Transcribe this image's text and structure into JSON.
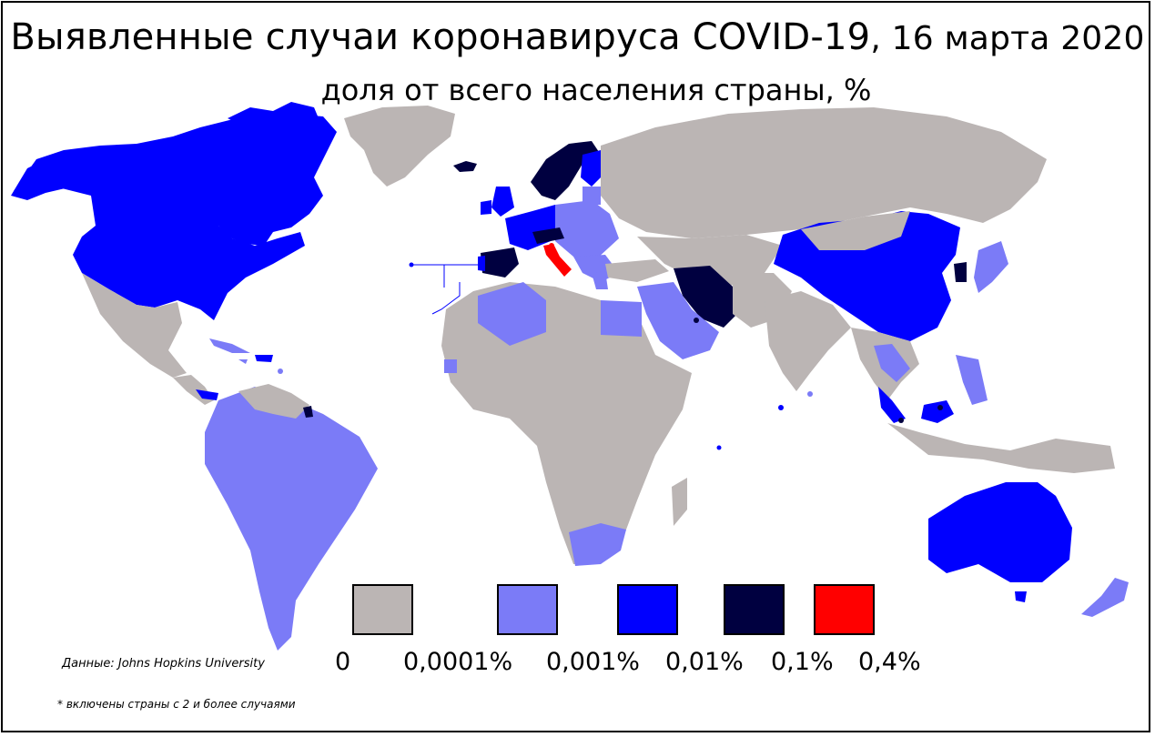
{
  "title": "Выявленные случаи коронавируса COVID-19",
  "title_date": ", 16 марта 2020",
  "subtitle": "доля от всего населения страны, %",
  "source": "Данные:  Johns Hopkins University",
  "footnote": "* включены страны с 2 и более случаями",
  "legend": {
    "colors": [
      "#bbb5b4",
      "#7b7bf7",
      "#0000ff",
      "#000040",
      "#ff0000"
    ],
    "labels": [
      "0",
      "0,0001%",
      "0,001%",
      "0,01%",
      "0,1%",
      "0,4%"
    ]
  },
  "map": {
    "colors": {
      "ocean": "#ffffff",
      "border": "#ffffff",
      "no_data": "#bbb5b4",
      "level1": "#7b7bf7",
      "level2": "#0000ff",
      "level3": "#000040",
      "level4": "#ff0000"
    }
  }
}
